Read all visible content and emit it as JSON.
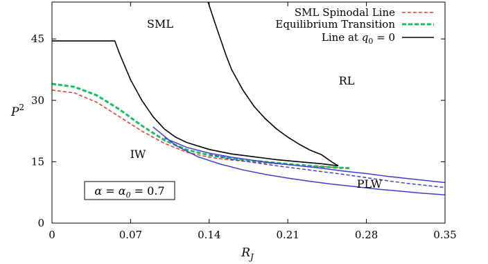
{
  "chart_data": {
    "type": "line",
    "xlabel": "R_J",
    "ylabel": "P^2",
    "xlim": [
      0,
      0.35
    ],
    "ylim": [
      0,
      54
    ],
    "x_ticks": [
      0,
      0.07,
      0.14,
      0.21,
      0.28,
      0.35
    ],
    "x_tick_labels": [
      "0",
      "0.07",
      "0.14",
      "0.21",
      "0.28",
      "0.35"
    ],
    "y_ticks": [
      0,
      15,
      30,
      45
    ],
    "y_tick_labels": [
      "0",
      "15",
      "30",
      "45"
    ],
    "grid": false,
    "legend_position": "top-right",
    "legend": [
      {
        "label_main": "SML Spinodal Line",
        "color": "#e8352e",
        "dash": "dashed"
      },
      {
        "label_main": "Equilibrium Transition",
        "color": "#16c060",
        "dash": "dashed"
      },
      {
        "label_main": "Line at ",
        "label_math": "q",
        "label_sub": "0",
        "label_tail": " = 0",
        "color": "#000000",
        "dash": "solid"
      }
    ],
    "region_labels": [
      "SML",
      "RL",
      "IW",
      "PLW"
    ],
    "parameter_box": {
      "text": "α = α",
      "sub": "0",
      "tail": " = 0.7"
    },
    "series": [
      {
        "color": "#e8352e",
        "dash": "dashed",
        "x": [
          0,
          0.02,
          0.04,
          0.06,
          0.08,
          0.1,
          0.12,
          0.14,
          0.16,
          0.18,
          0.2,
          0.22,
          0.24,
          0.26
        ],
        "y": [
          32.5,
          31.8,
          29.5,
          26.0,
          22.5,
          19.5,
          17.3,
          16.1,
          15.4,
          14.9,
          14.5,
          14.1,
          13.8,
          13.5
        ]
      },
      {
        "color": "#16c060",
        "dash": "dashed",
        "x": [
          0,
          0.02,
          0.04,
          0.06,
          0.08,
          0.1,
          0.12,
          0.14,
          0.16,
          0.18,
          0.2,
          0.22,
          0.24,
          0.265
        ],
        "y": [
          34.0,
          33.3,
          31.2,
          27.8,
          23.8,
          20.3,
          17.9,
          16.6,
          15.8,
          15.2,
          14.7,
          14.2,
          13.8,
          13.4
        ]
      },
      {
        "color": "#000000",
        "dash": "solid",
        "x": [
          0,
          0.056,
          0.06,
          0.07,
          0.08,
          0.09,
          0.1,
          0.11,
          0.12,
          0.14,
          0.16,
          0.18,
          0.2,
          0.22,
          0.24,
          0.255
        ],
        "y": [
          44.5,
          44.5,
          41.5,
          35.0,
          30.0,
          26.0,
          23.0,
          21.0,
          19.7,
          18.0,
          16.9,
          16.2,
          15.5,
          15.0,
          14.5,
          14.0
        ]
      },
      {
        "color": "#000000",
        "dash": "solid",
        "x": [
          0.139,
          0.145,
          0.15,
          0.155,
          0.16,
          0.17,
          0.18,
          0.19,
          0.2,
          0.21,
          0.22,
          0.23,
          0.24,
          0.25,
          0.255
        ],
        "y": [
          54.0,
          49.0,
          45.0,
          41.0,
          37.5,
          32.5,
          28.5,
          25.5,
          23.0,
          21.0,
          19.3,
          17.8,
          16.7,
          14.8,
          14.0
        ]
      },
      {
        "color": "#3d3dd6",
        "dash": "solid",
        "x": [
          0.1,
          0.12,
          0.14,
          0.16,
          0.18,
          0.2,
          0.22,
          0.24,
          0.26,
          0.28,
          0.3,
          0.32,
          0.35
        ],
        "y": [
          20.8,
          18.5,
          17.1,
          16.1,
          15.3,
          14.6,
          14.0,
          13.4,
          12.7,
          12.1,
          11.4,
          10.8,
          9.9
        ]
      },
      {
        "color": "#3d3dd6",
        "dash": "solid",
        "x": [
          0.09,
          0.11,
          0.13,
          0.15,
          0.17,
          0.19,
          0.21,
          0.23,
          0.25,
          0.27,
          0.29,
          0.31,
          0.33,
          0.35
        ],
        "y": [
          23.5,
          19.0,
          16.2,
          14.4,
          13.0,
          11.9,
          11.0,
          10.2,
          9.5,
          8.9,
          8.3,
          7.8,
          7.3,
          6.9
        ]
      },
      {
        "color": "#3d3dd6",
        "dash": "dashed",
        "x": [
          0.14,
          0.16,
          0.18,
          0.2,
          0.22,
          0.24,
          0.26,
          0.28,
          0.3,
          0.32,
          0.35
        ],
        "y": [
          16.8,
          15.6,
          14.8,
          14.0,
          13.3,
          12.6,
          11.9,
          11.1,
          10.3,
          9.6,
          8.7
        ]
      }
    ]
  }
}
